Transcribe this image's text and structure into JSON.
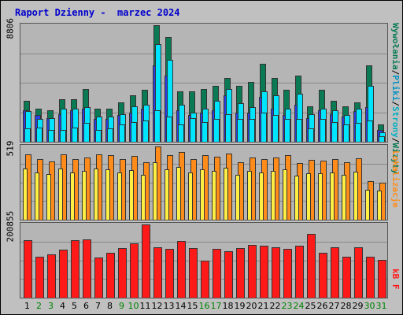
{
  "title": "Raport Dzienny -  marzec 2024",
  "colors": {
    "visits": "#0b7a54",
    "pages": "#2a3fe0",
    "files": "#00e5ff",
    "hits": "#0a7a55",
    "sites": "#ff8c1a",
    "sites_alt": "#ffee44",
    "kbytes": "#ff1a1a",
    "weekend": "#008000",
    "weekday": "#000000"
  },
  "labels": {
    "panel1_max": "8806",
    "panel2_max": "519",
    "panel3_max": "200855",
    "legend1_hits": "Wywołania",
    "legend1_files": "Pliki",
    "legend1_pages": "Strony",
    "legend1_visits": "Wizyty",
    "legend1_sep": "/",
    "legend2": "Lokalizacje",
    "legend3": "kB F"
  },
  "chart_data": [
    {
      "type": "bar",
      "name": "panel1",
      "ylim": [
        0,
        8806
      ],
      "x": [
        1,
        2,
        3,
        4,
        5,
        6,
        7,
        8,
        9,
        10,
        11,
        12,
        13,
        14,
        15,
        16,
        17,
        18,
        19,
        20,
        21,
        22,
        23,
        24,
        25,
        26,
        27,
        28,
        29,
        30,
        31
      ],
      "series": [
        {
          "name": "Wywołania",
          "values": [
            3100,
            2500,
            2400,
            3200,
            3200,
            4000,
            2500,
            2500,
            3000,
            3500,
            3900,
            8806,
            7900,
            3800,
            3800,
            4000,
            4200,
            4800,
            4200,
            4500,
            5900,
            4800,
            3900,
            5000,
            2700,
            3900,
            3100,
            2700,
            3000,
            5800,
            1300
          ]
        },
        {
          "name": "Pliki",
          "values": [
            2300,
            1700,
            1800,
            2500,
            2500,
            2600,
            1900,
            1900,
            2100,
            2700,
            2800,
            7400,
            6200,
            2800,
            2200,
            2500,
            3100,
            4000,
            2900,
            2600,
            3800,
            3500,
            2500,
            3600,
            2100,
            2500,
            2400,
            2000,
            2500,
            4200,
            700
          ]
        },
        {
          "name": "Strony",
          "values": [
            1000,
            1100,
            900,
            900,
            1100,
            1400,
            900,
            1000,
            1300,
            1500,
            1600,
            2400,
            1900,
            1300,
            1800,
            1500,
            1700,
            2100,
            1700,
            1700,
            2200,
            2000,
            1700,
            1700,
            1000,
            1700,
            1500,
            1300,
            1400,
            1600,
            400
          ]
        },
        {
          "name": "Wizyty",
          "values": [
            2400,
            2000,
            1800,
            2100,
            2400,
            2500,
            1700,
            1700,
            2000,
            2200,
            2500,
            5800,
            5000,
            2400,
            2000,
            2200,
            2400,
            3500,
            2200,
            2200,
            3400,
            2500,
            2000,
            2800,
            1800,
            2400,
            2100,
            1900,
            2300,
            2600,
            900
          ]
        }
      ]
    },
    {
      "type": "bar",
      "name": "panel2",
      "ylim": [
        0,
        519
      ],
      "x": [
        1,
        2,
        3,
        4,
        5,
        6,
        7,
        8,
        9,
        10,
        11,
        12,
        13,
        14,
        15,
        16,
        17,
        18,
        19,
        20,
        21,
        22,
        23,
        24,
        25,
        26,
        27,
        28,
        29,
        30,
        31
      ],
      "series": [
        {
          "name": "Lokalizacje",
          "values": [
            465,
            430,
            415,
            465,
            430,
            440,
            465,
            460,
            430,
            450,
            410,
            519,
            455,
            480,
            430,
            460,
            445,
            470,
            410,
            440,
            430,
            440,
            460,
            400,
            425,
            420,
            430,
            410,
            435,
            275,
            265
          ]
        }
      ]
    },
    {
      "type": "bar",
      "name": "panel3",
      "ylim": [
        0,
        200855
      ],
      "x": [
        1,
        2,
        3,
        4,
        5,
        6,
        7,
        8,
        9,
        10,
        11,
        12,
        13,
        14,
        15,
        16,
        17,
        18,
        19,
        20,
        21,
        22,
        23,
        24,
        25,
        26,
        27,
        28,
        29,
        30,
        31
      ],
      "series": [
        {
          "name": "kB F",
          "values": [
            158000,
            112000,
            118000,
            132000,
            158000,
            160000,
            110000,
            124000,
            136000,
            148000,
            200855,
            139000,
            133000,
            155000,
            137000,
            102000,
            134000,
            128000,
            135000,
            145000,
            143000,
            138000,
            133000,
            142000,
            175000,
            124000,
            138000,
            112000,
            139000,
            112000,
            103000
          ]
        }
      ]
    }
  ],
  "days": [
    "1",
    "2",
    "3",
    "4",
    "5",
    "6",
    "7",
    "8",
    "9",
    "10",
    "11",
    "12",
    "13",
    "14",
    "15",
    "16",
    "17",
    "18",
    "19",
    "20",
    "21",
    "22",
    "23",
    "24",
    "25",
    "26",
    "27",
    "28",
    "29",
    "30",
    "31"
  ],
  "weekend_days": [
    "2",
    "3",
    "9",
    "10",
    "16",
    "17",
    "23",
    "24",
    "30",
    "31"
  ]
}
